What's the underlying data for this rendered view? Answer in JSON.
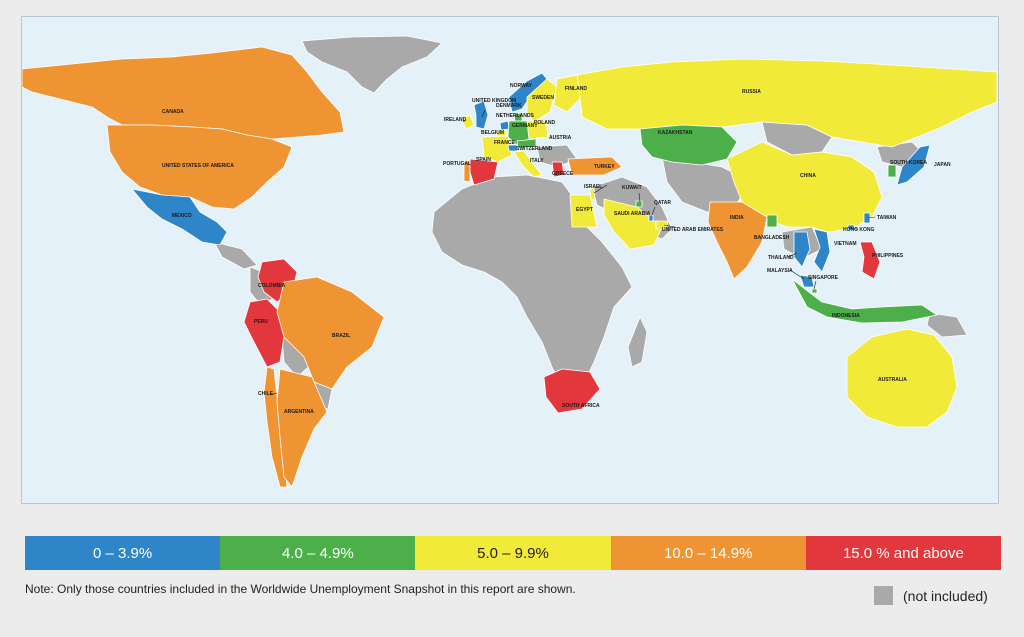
{
  "map": {
    "colors": {
      "ocean": "#e5f1f9",
      "not_included": "#a9a9a9",
      "band_0": "#2e86c9",
      "band_1": "#4caf4a",
      "band_2": "#f2ea39",
      "band_3": "#ee9432",
      "band_4": "#e2373c"
    },
    "countries": [
      {
        "name": "CANADA",
        "band": 3
      },
      {
        "name": "UNITED STATES OF AMERICA",
        "band": 3
      },
      {
        "name": "MEXICO",
        "band": 0
      },
      {
        "name": "COLOMBIA",
        "band": 4
      },
      {
        "name": "PERU",
        "band": 4
      },
      {
        "name": "BRAZIL",
        "band": 3
      },
      {
        "name": "CHILE",
        "band": 3
      },
      {
        "name": "ARGENTINA",
        "band": 3
      },
      {
        "name": "NORWAY",
        "band": 0
      },
      {
        "name": "SWEDEN",
        "band": 2
      },
      {
        "name": "FINLAND",
        "band": 2
      },
      {
        "name": "DENMARK",
        "band": 1
      },
      {
        "name": "UNITED KINGDOM",
        "band": 0
      },
      {
        "name": "IRELAND",
        "band": 2
      },
      {
        "name": "NETHERLANDS",
        "band": 0
      },
      {
        "name": "GERMANY",
        "band": 1
      },
      {
        "name": "POLAND",
        "band": 2
      },
      {
        "name": "BELGIUM",
        "band": 2
      },
      {
        "name": "AUSTRIA",
        "band": 1
      },
      {
        "name": "FRANCE",
        "band": 2
      },
      {
        "name": "SWITZERLAND",
        "band": 0
      },
      {
        "name": "PORTUGAL",
        "band": 3
      },
      {
        "name": "SPAIN",
        "band": 4
      },
      {
        "name": "ITALY",
        "band": 2
      },
      {
        "name": "GREECE",
        "band": 4
      },
      {
        "name": "TURKEY",
        "band": 3
      },
      {
        "name": "RUSSIA",
        "band": 2
      },
      {
        "name": "KAZAKHSTAN",
        "band": 1
      },
      {
        "name": "ISRAEL",
        "band": 2
      },
      {
        "name": "EGYPT",
        "band": 2
      },
      {
        "name": "KUWAIT",
        "band": 1
      },
      {
        "name": "QATAR",
        "band": 0
      },
      {
        "name": "SAUDI ARABIA",
        "band": 2
      },
      {
        "name": "UNITED ARAB EMIRATES",
        "band": 2
      },
      {
        "name": "INDIA",
        "band": 3
      },
      {
        "name": "BANGLADESH",
        "band": 1
      },
      {
        "name": "CHINA",
        "band": 2
      },
      {
        "name": "SOUTH KOREA",
        "band": 0
      },
      {
        "name": "JAPAN",
        "band": 0
      },
      {
        "name": "TAIWAN",
        "band": 0
      },
      {
        "name": "HONG KONG",
        "band": 0
      },
      {
        "name": "THAILAND",
        "band": 0
      },
      {
        "name": "VIETNAM",
        "band": 0
      },
      {
        "name": "PHILIPPINES",
        "band": 4
      },
      {
        "name": "MALAYSIA",
        "band": 0
      },
      {
        "name": "SINGAPORE",
        "band": 1
      },
      {
        "name": "INDONESIA",
        "band": 1
      },
      {
        "name": "AUSTRALIA",
        "band": 2
      },
      {
        "name": "SOUTH AFRICA",
        "band": 4
      }
    ]
  },
  "legend": [
    {
      "label": "0 – 3.9%",
      "color": "#2e86c9"
    },
    {
      "label": "4.0 – 4.9%",
      "color": "#4caf4a"
    },
    {
      "label": "5.0 – 9.9%",
      "color": "#f2ea39"
    },
    {
      "label": "10.0 – 14.9%",
      "color": "#ee9432"
    },
    {
      "label": "15.0 % and above",
      "color": "#e2373c"
    }
  ],
  "note": "Note:  Only those countries included in the Worldwide Unemployment Snapshot in this report are shown.",
  "not_included_label": "(not included)"
}
